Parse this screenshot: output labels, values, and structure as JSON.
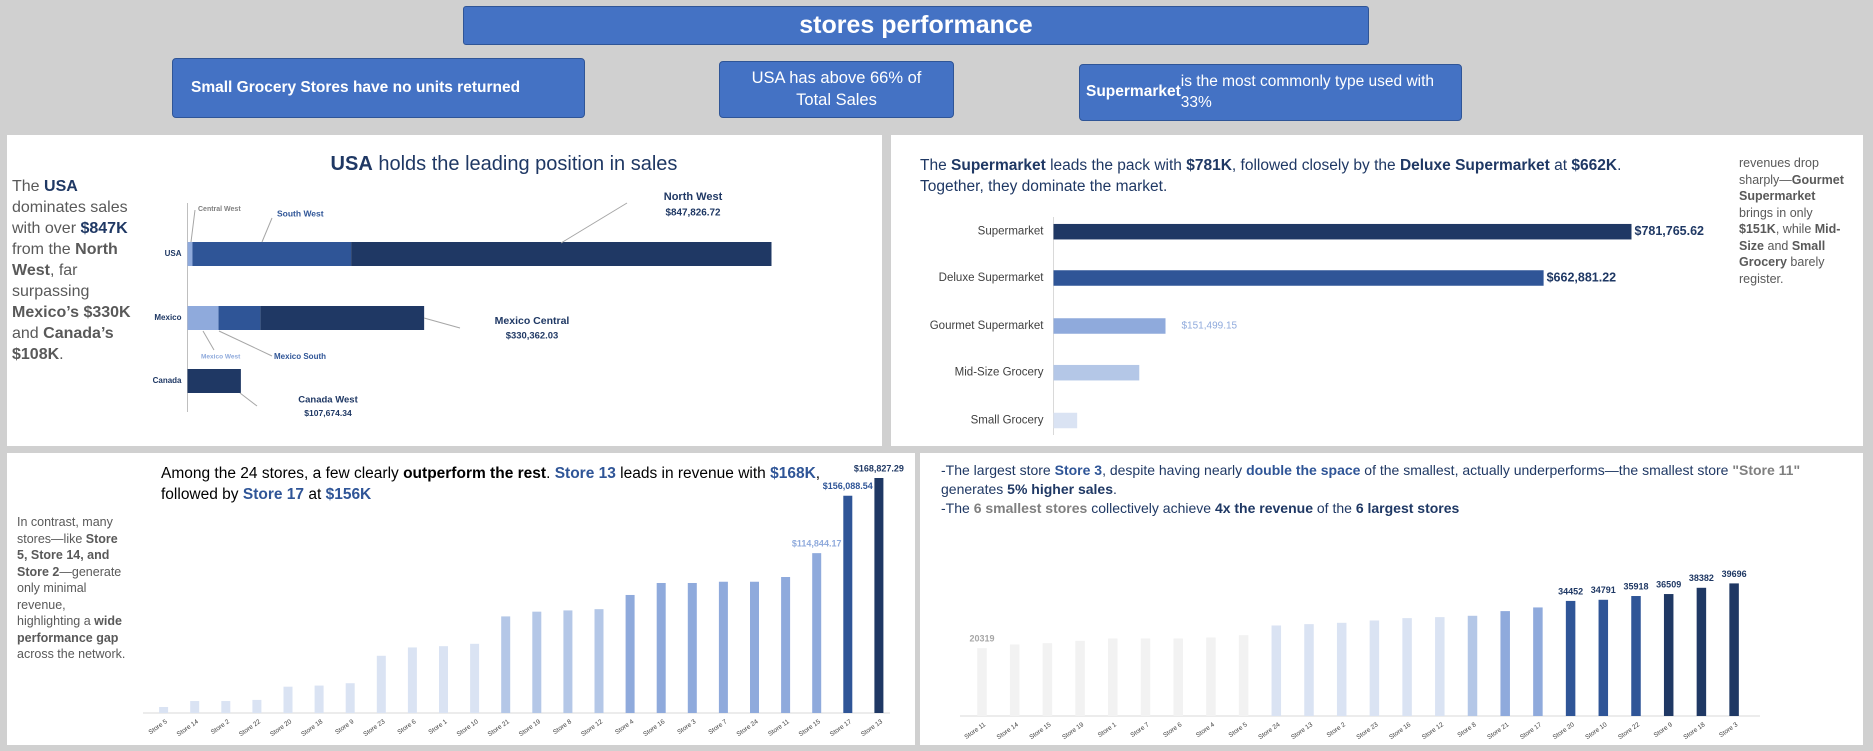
{
  "header": {
    "title": "stores performance"
  },
  "insights": [
    [
      {
        "text": "Small Grocery Stores have no units returned",
        "style": "bold"
      }
    ],
    [
      {
        "text": "USA has above 66% of Total Sales"
      }
    ],
    [
      {
        "text": "Supermarket",
        "style": "bold"
      },
      {
        "text": " is the most commonly type used with 33%"
      }
    ]
  ],
  "chart_data": [
    {
      "type": "stacked_bar_h",
      "title": [
        {
          "text": "USA",
          "style": "bold"
        },
        {
          "text": " holds the leading position in sales"
        }
      ],
      "narrative": [
        {
          "text": "The "
        },
        {
          "text": "USA",
          "style": "navy"
        },
        {
          "text": " dominates sales with over "
        },
        {
          "text": "$847K",
          "style": "navy"
        },
        {
          "text": " from the "
        },
        {
          "text": "North West",
          "style": "bold"
        },
        {
          "text": ", far surpassing "
        },
        {
          "text": "Mexico’s $330K",
          "style": "bold"
        },
        {
          "text": " and "
        },
        {
          "text": "Canada’s $108K",
          "style": "bold"
        },
        {
          "text": "."
        }
      ],
      "categories": [
        "USA",
        "Mexico",
        "Canada"
      ],
      "series": [
        {
          "name": "Central West",
          "color": "#8faadc",
          "values": [
            10000,
            null,
            null
          ]
        },
        {
          "name": "South West",
          "color": "#2f5597",
          "values": [
            320000,
            null,
            null
          ]
        },
        {
          "name": "North West",
          "color": "#1f3864",
          "values": [
            847826.72,
            null,
            null
          ],
          "value_labels": [
            "$847,826.72",
            null,
            null
          ]
        },
        {
          "name": "Mexico West",
          "color": "#8faadc",
          "values": [
            null,
            62600,
            null
          ]
        },
        {
          "name": "Mexico South",
          "color": "#2f5597",
          "values": [
            null,
            84300,
            null
          ]
        },
        {
          "name": "Mexico Central",
          "color": "#1f3864",
          "values": [
            null,
            330362.03,
            null
          ],
          "value_labels": [
            null,
            "$330,362.03",
            null
          ]
        },
        {
          "name": "Canada West",
          "color": "#1f3864",
          "values": [
            null,
            null,
            107674.34
          ],
          "value_labels": [
            null,
            null,
            "$107,674.34"
          ]
        }
      ]
    },
    {
      "type": "bar_h",
      "title": [
        {
          "text": "The "
        },
        {
          "text": "Supermarket",
          "style": "bold"
        },
        {
          "text": " leads the pack with "
        },
        {
          "text": "$781K",
          "style": "bold"
        },
        {
          "text": ", followed closely by the "
        },
        {
          "text": "Deluxe Supermarket",
          "style": "bold"
        },
        {
          "text": " at "
        },
        {
          "text": "$662K",
          "style": "bold"
        },
        {
          "text": ". Together, they dominate the market."
        }
      ],
      "side_note": [
        {
          "text": "revenues drop sharply—"
        },
        {
          "text": "Gourmet Supermarket",
          "style": "bold"
        },
        {
          "text": " brings in only "
        },
        {
          "text": "$151K",
          "style": "bold"
        },
        {
          "text": ", while "
        },
        {
          "text": "Mid-Size",
          "style": "bold"
        },
        {
          "text": " and "
        },
        {
          "text": "Small Grocery",
          "style": "bold"
        },
        {
          "text": " barely register."
        }
      ],
      "categories": [
        "Supermarket",
        "Deluxe Supermarket",
        "Gourmet Supermarket",
        "Mid-Size Grocery",
        "Small Grocery"
      ],
      "values": [
        781765.62,
        662881.22,
        151499.15,
        116000,
        32000
      ],
      "value_labels": [
        "$781,765.62",
        "$662,881.22",
        "$151,499.15",
        null,
        null
      ],
      "colors": [
        "#1f3864",
        "#2f5597",
        "#8faadc",
        "#b4c7e7",
        "#dae3f3"
      ]
    },
    {
      "type": "bar",
      "title": [
        {
          "text": "Among the 24 stores, a few clearly "
        },
        {
          "text": "outperform the rest",
          "style": "bold"
        },
        {
          "text": ". "
        },
        {
          "text": "Store 13",
          "style": "blue"
        },
        {
          "text": " leads in revenue with "
        },
        {
          "text": "$168K",
          "style": "blue"
        },
        {
          "text": ", followed by "
        },
        {
          "text": "Store 17",
          "style": "blue"
        },
        {
          "text": " at "
        },
        {
          "text": "$156K",
          "style": "blue"
        }
      ],
      "side_note": [
        {
          "text": "In contrast, many stores—like "
        },
        {
          "text": "Store 5, Store 14, and Store 2",
          "style": "bold"
        },
        {
          "text": "—generate only minimal revenue, highlighting a "
        },
        {
          "text": "wide performance gap",
          "style": "bold"
        },
        {
          "text": " across the network."
        }
      ],
      "categories": [
        "Store 5",
        "Store 14",
        "Store 2",
        "Store 22",
        "Store 20",
        "Store 18",
        "Store 9",
        "Store 23",
        "Store 6",
        "Store 1",
        "Store 10",
        "Store 21",
        "Store 19",
        "Store 8",
        "Store 12",
        "Store 4",
        "Store 16",
        "Store 3",
        "Store 7",
        "Store 24",
        "Store 11",
        "Store 15",
        "Store 17",
        "Store 13"
      ],
      "values": [
        4300,
        8600,
        8600,
        9400,
        18900,
        19700,
        21400,
        41100,
        47100,
        48000,
        49700,
        69400,
        72800,
        73700,
        74600,
        84800,
        93400,
        93400,
        94300,
        94300,
        97700,
        114844.17,
        156088.54,
        168827.29
      ],
      "value_labels": [
        null,
        null,
        null,
        null,
        null,
        null,
        null,
        null,
        null,
        null,
        null,
        null,
        null,
        null,
        null,
        null,
        null,
        null,
        null,
        null,
        null,
        "$114,844.17",
        "$156,088.54",
        "$168,827.29"
      ],
      "colors": [
        "#dae3f3",
        "#dae3f3",
        "#dae3f3",
        "#dae3f3",
        "#dae3f3",
        "#dae3f3",
        "#dae3f3",
        "#dae3f3",
        "#dae3f3",
        "#dae3f3",
        "#dae3f3",
        "#b4c7e7",
        "#b4c7e7",
        "#b4c7e7",
        "#b4c7e7",
        "#8faadc",
        "#8faadc",
        "#8faadc",
        "#8faadc",
        "#8faadc",
        "#8faadc",
        "#8faadc",
        "#2f5597",
        "#1f3864"
      ]
    },
    {
      "type": "bar",
      "notes": [
        [
          {
            "text": "-The largest store "
          },
          {
            "text": "Store 3",
            "style": "blue"
          },
          {
            "text": ", despite having nearly "
          },
          {
            "text": "double the space",
            "style": "blue"
          },
          {
            "text": " of the smallest, actually underperforms—the smallest store "
          },
          {
            "text": "\"Store 11\"",
            "style": "gray"
          },
          {
            "text": " generates "
          },
          {
            "text": "5% higher sales",
            "style": "bold"
          },
          {
            "text": "."
          }
        ],
        [
          {
            "text": "-The "
          },
          {
            "text": "6 smallest stores",
            "style": "gray"
          },
          {
            "text": " collectively achieve "
          },
          {
            "text": "4x the revenue",
            "style": "bold"
          },
          {
            "text": " of the "
          },
          {
            "text": "6 largest stores",
            "style": "navy"
          }
        ]
      ],
      "categories": [
        "Store 11",
        "Store 14",
        "Store 15",
        "Store 19",
        "Store 1",
        "Store 7",
        "Store 6",
        "Store 4",
        "Store 5",
        "Store 24",
        "Store 13",
        "Store 2",
        "Store 23",
        "Store 16",
        "Store 12",
        "Store 8",
        "Store 21",
        "Store 17",
        "Store 20",
        "Store 10",
        "Store 22",
        "Store 9",
        "Store 18",
        "Store 3"
      ],
      "values": [
        20319,
        21400,
        21800,
        22500,
        23200,
        23200,
        23200,
        23500,
        24200,
        27100,
        27500,
        27900,
        28600,
        29300,
        29600,
        30000,
        31400,
        32500,
        34452,
        34791,
        35918,
        36509,
        38382,
        39696
      ],
      "value_labels": [
        "20319",
        null,
        null,
        null,
        null,
        null,
        null,
        null,
        null,
        null,
        null,
        null,
        null,
        null,
        null,
        null,
        null,
        null,
        "34452",
        "34791",
        "35918",
        "36509",
        "38382",
        "39696"
      ],
      "value_label_colors": [
        "#a6a6a6",
        null,
        null,
        null,
        null,
        null,
        null,
        null,
        null,
        null,
        null,
        null,
        null,
        null,
        null,
        null,
        null,
        null,
        "#1f3864",
        "#1f3864",
        "#1f3864",
        "#1f3864",
        "#1f3864",
        "#1f3864"
      ],
      "colors": [
        "#f2f2f2",
        "#f2f2f2",
        "#f2f2f2",
        "#f2f2f2",
        "#f2f2f2",
        "#f2f2f2",
        "#f2f2f2",
        "#f2f2f2",
        "#f2f2f2",
        "#dae3f3",
        "#dae3f3",
        "#dae3f3",
        "#dae3f3",
        "#dae3f3",
        "#dae3f3",
        "#b4c7e7",
        "#8faadc",
        "#8faadc",
        "#2f5597",
        "#2f5597",
        "#2f5597",
        "#1f3864",
        "#1f3864",
        "#1f3864"
      ]
    }
  ]
}
